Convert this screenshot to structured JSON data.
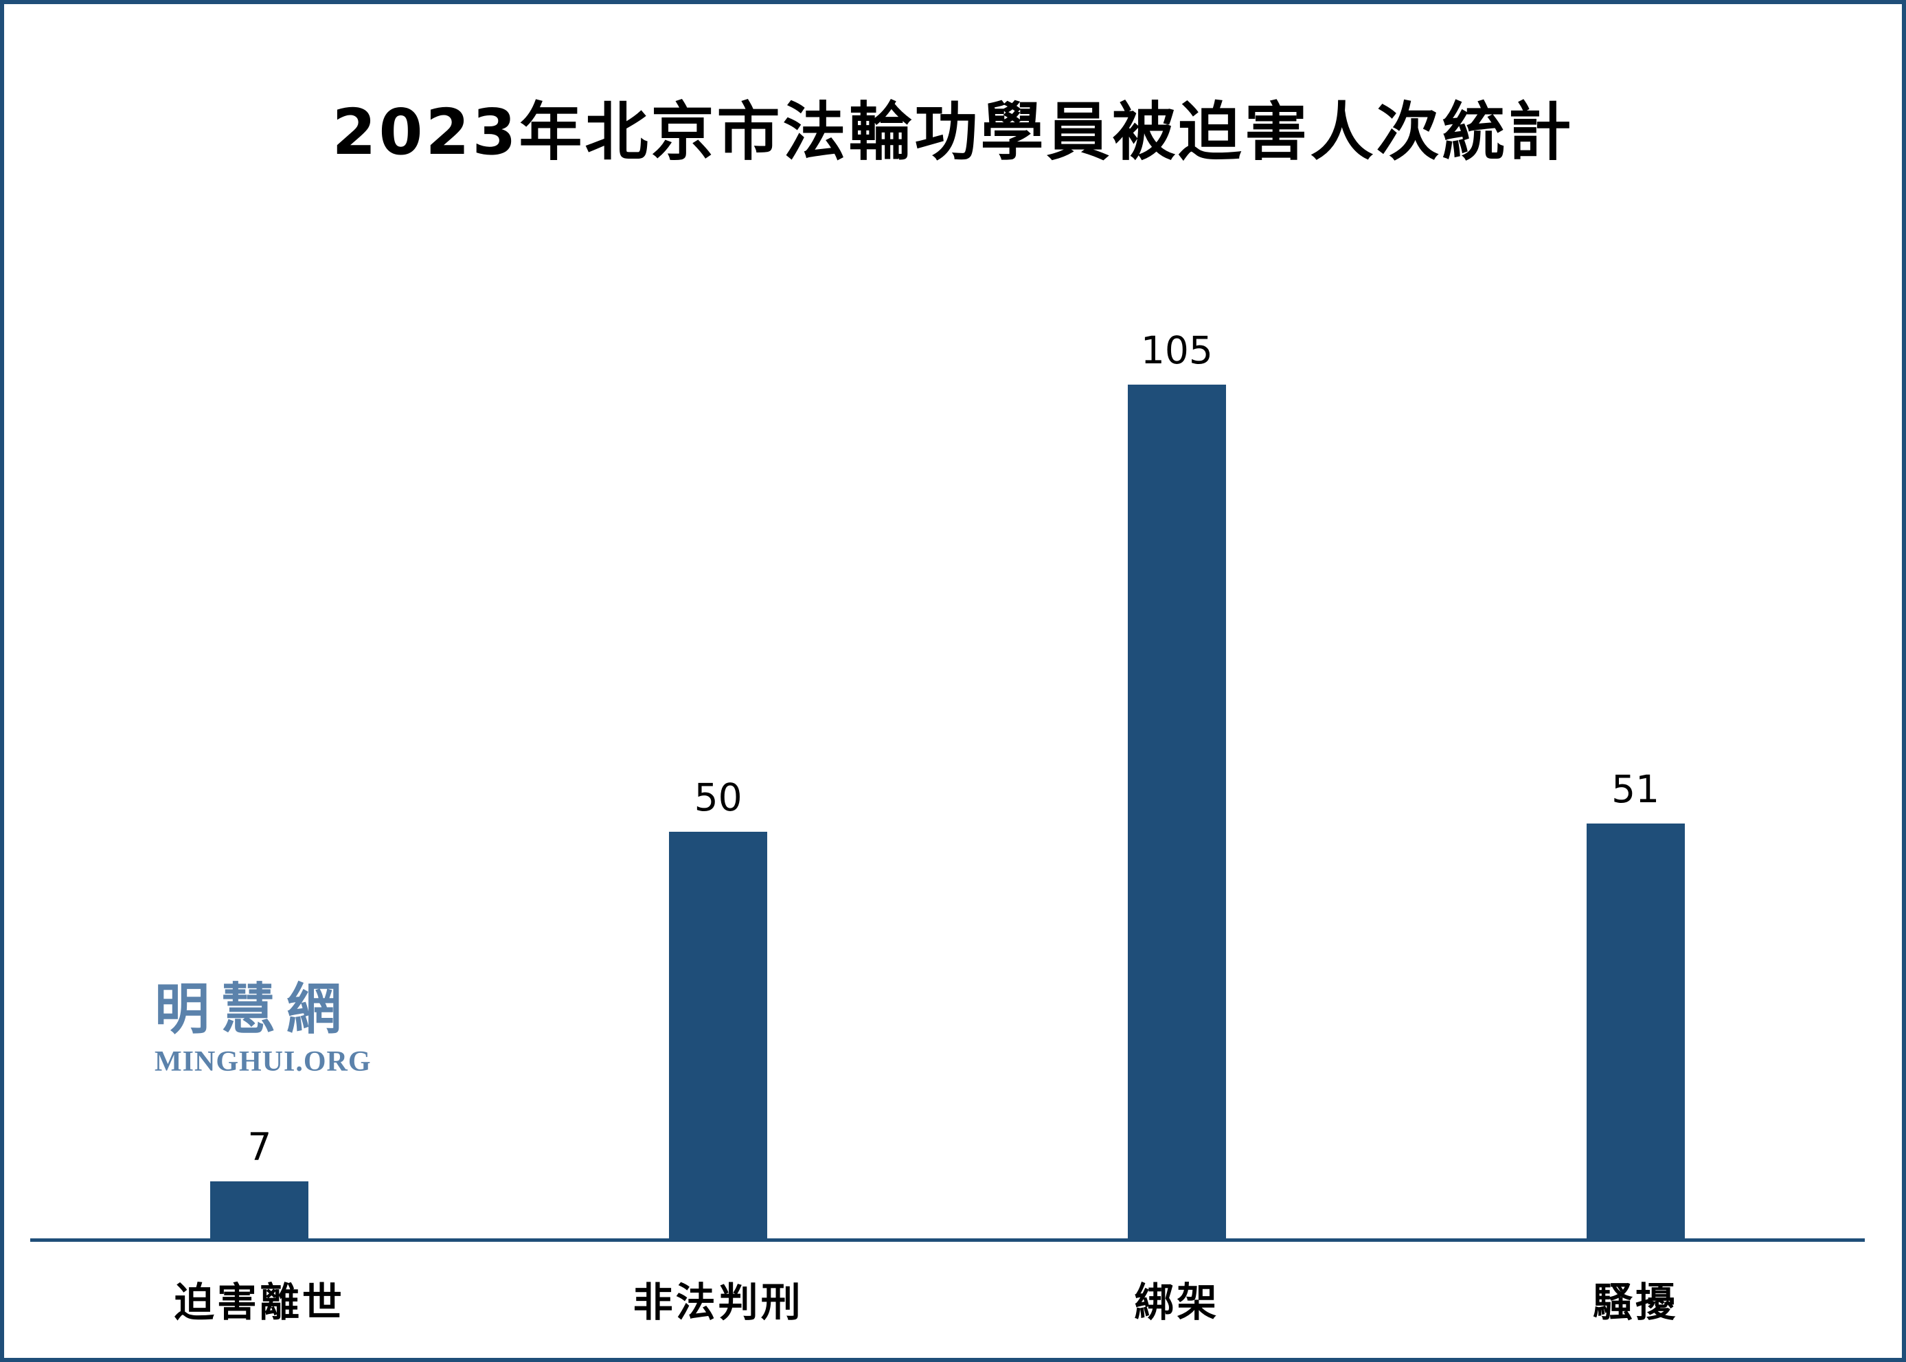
{
  "page": {
    "background_color": "#FFFFFF",
    "frame_border_color": "#1F4E79"
  },
  "chart_data": {
    "type": "bar",
    "title": "2023年北京市法輪功學員被迫害人次統計",
    "categories": [
      "迫害離世",
      "非法判刑",
      "綁架",
      "騷擾"
    ],
    "values": [
      7,
      50,
      105,
      51
    ],
    "value_labels": [
      "7",
      "50",
      "105",
      "51"
    ],
    "xlabel": "",
    "ylabel": "",
    "ylim": [
      0,
      105
    ],
    "grid": false,
    "legend": false,
    "y_axis_shown": false,
    "bar_color": "#1F4E79",
    "axis_color": "#1F4E79",
    "value_label_color": "#000000",
    "category_label_color": "#000000"
  },
  "logo": {
    "chinese": "明慧網",
    "latin": "MINGHUI.ORG",
    "color": "#5B82AB"
  }
}
